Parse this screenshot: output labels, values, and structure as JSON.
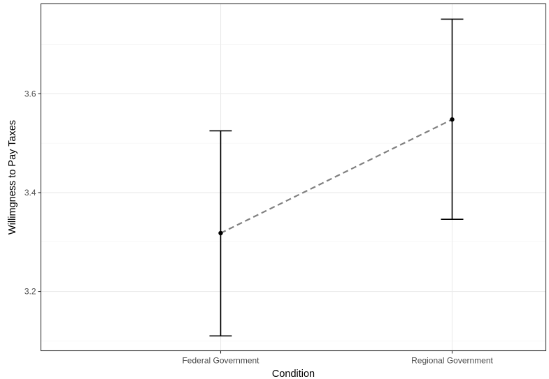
{
  "chart_data": {
    "type": "line",
    "title": "",
    "xlabel": "Condition",
    "ylabel": "Willimgness to Pay Taxes",
    "categories": [
      "Federal Government",
      "Regional Government"
    ],
    "series": [
      {
        "values": [
          3.318,
          3.548
        ],
        "ci_lower": [
          3.11,
          3.346
        ],
        "ci_upper": [
          3.525,
          3.751
        ],
        "line_style": "dashed",
        "line_color": "#808080",
        "point_color": "#000000",
        "errorbar_color": "#000000"
      }
    ],
    "yticks": [
      3.2,
      3.4,
      3.6
    ],
    "ytick_labels": [
      "3.2",
      "3.4",
      "3.6"
    ],
    "ylim": [
      3.08,
      3.782
    ],
    "grid": true,
    "legend": "none"
  }
}
